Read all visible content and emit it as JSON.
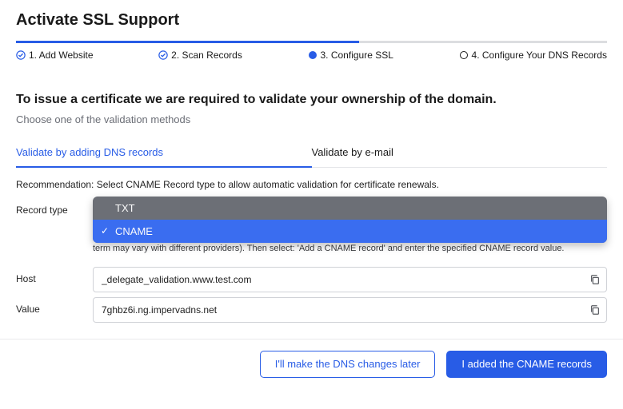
{
  "title": "Activate SSL Support",
  "progress_pct": 58,
  "step_color": "#285ce6",
  "steps": {
    "s1": {
      "label": "1. Add Website",
      "state": "done"
    },
    "s2": {
      "label": "2. Scan Records",
      "state": "done"
    },
    "s3": {
      "label": "3. Configure SSL",
      "state": "current"
    },
    "s4": {
      "label": "4. Configure Your DNS Records",
      "state": "pending"
    }
  },
  "heading": "To issue a certificate we are required to validate your ownership of the domain.",
  "subheading": "Choose one of the validation methods",
  "tabs": {
    "dns": "Validate by adding DNS records",
    "email": "Validate by e-mail"
  },
  "recommendation": "Recommendation: Select CNAME Record type to allow automatic validation for certificate renewals.",
  "labels": {
    "record_type": "Record type",
    "host": "Host",
    "value": "Value"
  },
  "record_type_options": {
    "txt": "TXT",
    "cname": "CNAME"
  },
  "record_type_selected": "CNAME",
  "cname_help": "In order to add a CNAME record to your domain's zone file, enter your DNS provider's portal and select: 'edit DNS records' (actual term may vary with different providers). Then select: 'Add a CNAME record' and enter the specified CNAME record value.",
  "host_value": "_delegate_validation.www.test.com",
  "value_value": "7ghbz6i.ng.impervadns.net",
  "buttons": {
    "later": "I'll make the DNS changes later",
    "added": "I added the CNAME records"
  },
  "colors": {
    "primary": "#285ce6",
    "dropdown_bg": "#6c6f76",
    "dropdown_selected": "#3a6df0"
  }
}
